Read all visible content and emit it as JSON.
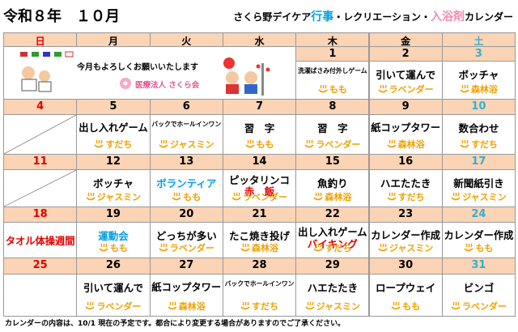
{
  "header": {
    "title": "令和８年　１０月",
    "subtitle": [
      {
        "text": "さくら野デイケア",
        "color": "#000000"
      },
      {
        "text": "行事",
        "color": "#00a0e0"
      },
      {
        "text": "・レクリエーション・",
        "color": "#000000"
      },
      {
        "text": "入浴剤",
        "color": "#f08cb4"
      },
      {
        "text": "カレンダー",
        "color": "#000000"
      }
    ]
  },
  "weekdays": [
    {
      "text": "日",
      "color": "#e00000"
    },
    {
      "text": "月",
      "color": "#000000"
    },
    {
      "text": "火",
      "color": "#000000"
    },
    {
      "text": "水",
      "color": "#000000"
    },
    {
      "text": "木",
      "color": "#000000"
    },
    {
      "text": "金",
      "color": "#000000"
    },
    {
      "text": "土",
      "color": "#30b0d0"
    }
  ],
  "banner": {
    "greeting": "今月もよろしくお願いいたします",
    "org": "医療法人 さくら会"
  },
  "weeks": [
    {
      "days": [
        null,
        null,
        null,
        null,
        {
          "date": "1",
          "lines": [
            {
              "text": "洗濯ばさみ付外しゲーム",
              "color": "#000000"
            }
          ],
          "bath": "もも"
        },
        {
          "date": "2",
          "lines": [
            {
              "text": "引いて運んで",
              "color": "#000000"
            }
          ],
          "bath": "ラベンダー"
        },
        {
          "date": "3",
          "lines": [
            {
              "text": "ボッチャ",
              "color": "#000000"
            }
          ],
          "bath": "森林浴"
        }
      ]
    },
    {
      "days": [
        {
          "date": "4",
          "lines": [],
          "bath": null,
          "diagonal": true
        },
        {
          "date": "5",
          "lines": [
            {
              "text": "出し入れゲーム",
              "color": "#000000"
            }
          ],
          "bath": "すだち"
        },
        {
          "date": "6",
          "lines": [
            {
              "text": "バックでホールインワン",
              "color": "#000000"
            }
          ],
          "bath": "ジャスミン"
        },
        {
          "date": "7",
          "lines": [
            {
              "text": "習　字",
              "color": "#000000"
            }
          ],
          "bath": "もも"
        },
        {
          "date": "8",
          "lines": [
            {
              "text": "習　字",
              "color": "#000000"
            }
          ],
          "bath": "ラベンダー"
        },
        {
          "date": "9",
          "lines": [
            {
              "text": "紙コップタワー",
              "color": "#000000"
            }
          ],
          "bath": "森林浴"
        },
        {
          "date": "10",
          "lines": [
            {
              "text": "数合わせ",
              "color": "#000000"
            }
          ],
          "bath": "すだち"
        }
      ]
    },
    {
      "days": [
        {
          "date": "11",
          "lines": [],
          "bath": null,
          "diagonal": true
        },
        {
          "date": "12",
          "lines": [
            {
              "text": "ボッチャ",
              "color": "#000000"
            }
          ],
          "bath": "ジャスミン"
        },
        {
          "date": "13",
          "lines": [
            {
              "text": "ボランティア",
              "color": "#00a0e0"
            }
          ],
          "bath": "もも"
        },
        {
          "date": "14",
          "lines": [
            {
              "text": "ピッタリンコ",
              "color": "#000000"
            },
            {
              "text": "赤　飯",
              "color": "#e00000"
            }
          ],
          "bath": "ラベンダー"
        },
        {
          "date": "15",
          "lines": [
            {
              "text": "魚釣り",
              "color": "#000000"
            }
          ],
          "bath": "森林浴"
        },
        {
          "date": "16",
          "lines": [
            {
              "text": "ハエたたき",
              "color": "#000000"
            }
          ],
          "bath": "すだち"
        },
        {
          "date": "17",
          "lines": [
            {
              "text": "新聞紙引き",
              "color": "#000000"
            }
          ],
          "bath": "ジャスミン"
        }
      ]
    },
    {
      "days": [
        {
          "date": "18",
          "lines": [
            {
              "text": "タオル体操週間",
              "color": "#e00000"
            }
          ],
          "bath": null
        },
        {
          "date": "19",
          "lines": [
            {
              "text": "運動会",
              "color": "#00a0e0"
            }
          ],
          "bath": "もも"
        },
        {
          "date": "20",
          "lines": [
            {
              "text": "どっちが多い",
              "color": "#000000"
            }
          ],
          "bath": "ラベンダー"
        },
        {
          "date": "21",
          "lines": [
            {
              "text": "たこ焼き投げ",
              "color": "#000000"
            }
          ],
          "bath": "森林浴"
        },
        {
          "date": "22",
          "lines": [
            {
              "text": "出し入れゲーム",
              "color": "#000000"
            },
            {
              "text": "バイキング",
              "color": "#e00000"
            }
          ],
          "bath": "すだち"
        },
        {
          "date": "23",
          "lines": [
            {
              "text": "カレンダー作成",
              "color": "#000000"
            }
          ],
          "bath": "ジャスミン"
        },
        {
          "date": "24",
          "lines": [
            {
              "text": "カレンダー作成",
              "color": "#000000"
            }
          ],
          "bath": "もも"
        }
      ]
    },
    {
      "days": [
        {
          "date": "25",
          "lines": [],
          "bath": null
        },
        {
          "date": "26",
          "lines": [
            {
              "text": "引いて運んで",
              "color": "#000000"
            }
          ],
          "bath": "ラベンダー"
        },
        {
          "date": "27",
          "lines": [
            {
              "text": "紙コップタワー",
              "color": "#000000"
            }
          ],
          "bath": "森林浴"
        },
        {
          "date": "28",
          "lines": [
            {
              "text": "バックでホールインワン",
              "color": "#000000"
            }
          ],
          "bath": "すだち"
        },
        {
          "date": "29",
          "lines": [
            {
              "text": "ハエたたき",
              "color": "#000000"
            }
          ],
          "bath": "ジャスミン"
        },
        {
          "date": "30",
          "lines": [
            {
              "text": "ロープウェイ",
              "color": "#000000"
            }
          ],
          "bath": "もも"
        },
        {
          "date": "31",
          "lines": [
            {
              "text": "ビンゴ",
              "color": "#000000"
            }
          ],
          "bath": "ラベンダー"
        }
      ]
    }
  ],
  "footer": "カレンダーの内容は、10/1 現在の予定です。都合により変更する場合がありますのでご了承ください。"
}
